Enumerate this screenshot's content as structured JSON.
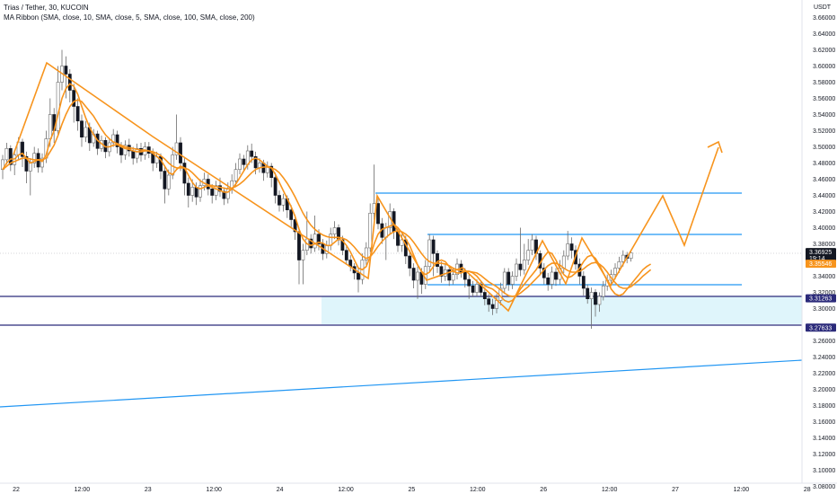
{
  "header": {
    "title": "Trias / Tether, 30, KUCOIN",
    "indicator": "MA Ribbon (SMA, close, 10, SMA, close, 5, SMA, close, 100, SMA, close, 200)"
  },
  "chart_data": {
    "type": "candlestick",
    "currency": "USDT",
    "y_ticks": [
      "3.66000",
      "3.64000",
      "3.62000",
      "3.60000",
      "3.58000",
      "3.56000",
      "3.54000",
      "3.52000",
      "3.50000",
      "3.48000",
      "3.46000",
      "3.44000",
      "3.42000",
      "3.40000",
      "3.38000",
      "3.34000",
      "3.32000",
      "3.30000",
      "3.26000",
      "3.24000",
      "3.22000",
      "3.20000",
      "3.18000",
      "3.16000",
      "3.14000",
      "3.12000",
      "3.10000",
      "3.08000"
    ],
    "x_ticks": [
      "22",
      "12:00",
      "23",
      "12:00",
      "24",
      "12:00",
      "25",
      "12:00",
      "26",
      "12:00",
      "27",
      "12:00",
      "28"
    ],
    "ylim": [
      3.075,
      3.675
    ],
    "price_tags": [
      {
        "value": 3.36925,
        "label": "3.36925",
        "sub": "19:14",
        "kind": "last",
        "color": "#131722"
      },
      {
        "value": 3.35546,
        "label": "3.35546",
        "kind": "ma",
        "color": "#f7941d"
      },
      {
        "value": 3.31263,
        "label": "3.31263",
        "kind": "level",
        "color": "#2b2a7a"
      },
      {
        "value": 3.27633,
        "label": "3.27633",
        "kind": "level",
        "color": "#2b2a7a"
      }
    ],
    "colors": {
      "up": "#ffffff",
      "down": "#131722",
      "wick": "#6b6b6b",
      "orange": "#f7941d",
      "blue": "#2196f3",
      "navy": "#2b2a7a",
      "zone": "#dff5fb"
    },
    "candles": [
      [
        3.472,
        3.484,
        3.49,
        3.46
      ],
      [
        3.484,
        3.498,
        3.505,
        3.478
      ],
      [
        3.498,
        3.478,
        3.502,
        3.47
      ],
      [
        3.478,
        3.49,
        3.496,
        3.465
      ],
      [
        3.49,
        3.506,
        3.512,
        3.484
      ],
      [
        3.506,
        3.488,
        3.51,
        3.475
      ],
      [
        3.488,
        3.47,
        3.494,
        3.455
      ],
      [
        3.47,
        3.48,
        3.486,
        3.44
      ],
      [
        3.48,
        3.492,
        3.5,
        3.474
      ],
      [
        3.492,
        3.475,
        3.498,
        3.468
      ],
      [
        3.475,
        3.486,
        3.492,
        3.468
      ],
      [
        3.486,
        3.51,
        3.52,
        3.48
      ],
      [
        3.51,
        3.54,
        3.56,
        3.5
      ],
      [
        3.54,
        3.52,
        3.548,
        3.505
      ],
      [
        3.52,
        3.58,
        3.6,
        3.515
      ],
      [
        3.58,
        3.6,
        3.62,
        3.57
      ],
      [
        3.6,
        3.59,
        3.612,
        3.56
      ],
      [
        3.59,
        3.57,
        3.596,
        3.555
      ],
      [
        3.57,
        3.55,
        3.578,
        3.53
      ],
      [
        3.55,
        3.532,
        3.56,
        3.52
      ],
      [
        3.532,
        3.512,
        3.54,
        3.5
      ],
      [
        3.512,
        3.524,
        3.532,
        3.506
      ],
      [
        3.524,
        3.505,
        3.53,
        3.495
      ],
      [
        3.505,
        3.516,
        3.522,
        3.5
      ],
      [
        3.516,
        3.498,
        3.52,
        3.49
      ],
      [
        3.498,
        3.508,
        3.514,
        3.494
      ],
      [
        3.508,
        3.494,
        3.512,
        3.486
      ],
      [
        3.494,
        3.505,
        3.51,
        3.488
      ],
      [
        3.505,
        3.515,
        3.522,
        3.5
      ],
      [
        3.515,
        3.5,
        3.52,
        3.492
      ],
      [
        3.5,
        3.49,
        3.506,
        3.48
      ],
      [
        3.49,
        3.502,
        3.508,
        3.484
      ],
      [
        3.502,
        3.495,
        3.51,
        3.488
      ],
      [
        3.495,
        3.486,
        3.5,
        3.478
      ],
      [
        3.486,
        3.498,
        3.504,
        3.48
      ],
      [
        3.498,
        3.49,
        3.505,
        3.482
      ],
      [
        3.49,
        3.5,
        3.506,
        3.484
      ],
      [
        3.5,
        3.492,
        3.506,
        3.486
      ],
      [
        3.492,
        3.48,
        3.498,
        3.47
      ],
      [
        3.48,
        3.488,
        3.494,
        3.474
      ],
      [
        3.488,
        3.47,
        3.492,
        3.46
      ],
      [
        3.47,
        3.448,
        3.476,
        3.43
      ],
      [
        3.448,
        3.465,
        3.472,
        3.44
      ],
      [
        3.465,
        3.49,
        3.5,
        3.46
      ],
      [
        3.49,
        3.505,
        3.54,
        3.484
      ],
      [
        3.505,
        3.48,
        3.512,
        3.47
      ],
      [
        3.48,
        3.455,
        3.486,
        3.44
      ],
      [
        3.455,
        3.44,
        3.462,
        3.425
      ],
      [
        3.44,
        3.45,
        3.46,
        3.432
      ],
      [
        3.45,
        3.438,
        3.456,
        3.428
      ],
      [
        3.438,
        3.452,
        3.46,
        3.432
      ],
      [
        3.452,
        3.46,
        3.468,
        3.446
      ],
      [
        3.46,
        3.448,
        3.466,
        3.44
      ],
      [
        3.448,
        3.44,
        3.454,
        3.43
      ],
      [
        3.44,
        3.452,
        3.458,
        3.434
      ],
      [
        3.452,
        3.445,
        3.462,
        3.438
      ],
      [
        3.445,
        3.436,
        3.45,
        3.428
      ],
      [
        3.436,
        3.448,
        3.456,
        3.43
      ],
      [
        3.448,
        3.458,
        3.466,
        3.442
      ],
      [
        3.458,
        3.472,
        3.48,
        3.452
      ],
      [
        3.472,
        3.485,
        3.492,
        3.466
      ],
      [
        3.485,
        3.478,
        3.49,
        3.47
      ],
      [
        3.478,
        3.495,
        3.502,
        3.472
      ],
      [
        3.495,
        3.488,
        3.504,
        3.48
      ],
      [
        3.488,
        3.474,
        3.494,
        3.466
      ],
      [
        3.474,
        3.48,
        3.486,
        3.468
      ],
      [
        3.48,
        3.468,
        3.484,
        3.458
      ],
      [
        3.468,
        3.476,
        3.482,
        3.462
      ],
      [
        3.476,
        3.462,
        3.48,
        3.45
      ],
      [
        3.462,
        3.44,
        3.468,
        3.43
      ],
      [
        3.44,
        3.428,
        3.446,
        3.42
      ],
      [
        3.428,
        3.436,
        3.442,
        3.42
      ],
      [
        3.436,
        3.422,
        3.44,
        3.412
      ],
      [
        3.422,
        3.41,
        3.428,
        3.4
      ],
      [
        3.41,
        3.395,
        3.416,
        3.385
      ],
      [
        3.395,
        3.36,
        3.4,
        3.33
      ],
      [
        3.36,
        3.372,
        3.38,
        3.33
      ],
      [
        3.372,
        3.386,
        3.42,
        3.366
      ],
      [
        3.386,
        3.375,
        3.392,
        3.368
      ],
      [
        3.375,
        3.392,
        3.415,
        3.37
      ],
      [
        3.392,
        3.38,
        3.398,
        3.372
      ],
      [
        3.38,
        3.368,
        3.386,
        3.36
      ],
      [
        3.368,
        3.378,
        3.384,
        3.362
      ],
      [
        3.378,
        3.392,
        3.4,
        3.372
      ],
      [
        3.392,
        3.4,
        3.408,
        3.386
      ],
      [
        3.4,
        3.385,
        3.404,
        3.378
      ],
      [
        3.385,
        3.372,
        3.39,
        3.366
      ],
      [
        3.372,
        3.36,
        3.378,
        3.354
      ],
      [
        3.36,
        3.352,
        3.366,
        3.346
      ],
      [
        3.352,
        3.344,
        3.356,
        3.336
      ],
      [
        3.344,
        3.336,
        3.35,
        3.32
      ],
      [
        3.336,
        3.36,
        3.368,
        3.33
      ],
      [
        3.36,
        3.375,
        3.382,
        3.354
      ],
      [
        3.375,
        3.418,
        3.43,
        3.37
      ],
      [
        3.418,
        3.43,
        3.478,
        3.41
      ],
      [
        3.43,
        3.405,
        3.436,
        3.398
      ],
      [
        3.405,
        3.388,
        3.412,
        3.38
      ],
      [
        3.388,
        3.4,
        3.406,
        3.36
      ],
      [
        3.4,
        3.42,
        3.43,
        3.392
      ],
      [
        3.42,
        3.395,
        3.424,
        3.386
      ],
      [
        3.395,
        3.378,
        3.4,
        3.37
      ],
      [
        3.378,
        3.385,
        3.392,
        3.37
      ],
      [
        3.385,
        3.365,
        3.39,
        3.355
      ],
      [
        3.365,
        3.35,
        3.372,
        3.34
      ],
      [
        3.35,
        3.335,
        3.356,
        3.325
      ],
      [
        3.335,
        3.345,
        3.352,
        3.312
      ],
      [
        3.345,
        3.33,
        3.35,
        3.318
      ],
      [
        3.33,
        3.352,
        3.36,
        3.324
      ],
      [
        3.352,
        3.385,
        3.392,
        3.346
      ],
      [
        3.385,
        3.368,
        3.39,
        3.34
      ],
      [
        3.368,
        3.352,
        3.372,
        3.344
      ],
      [
        3.352,
        3.34,
        3.358,
        3.332
      ],
      [
        3.34,
        3.348,
        3.356,
        3.334
      ],
      [
        3.348,
        3.335,
        3.352,
        3.328
      ],
      [
        3.335,
        3.342,
        3.35,
        3.33
      ],
      [
        3.342,
        3.355,
        3.362,
        3.336
      ],
      [
        3.355,
        3.345,
        3.36,
        3.338
      ],
      [
        3.345,
        3.336,
        3.35,
        3.326
      ],
      [
        3.336,
        3.328,
        3.342,
        3.312
      ],
      [
        3.328,
        3.32,
        3.334,
        3.314
      ],
      [
        3.32,
        3.33,
        3.336,
        3.315
      ],
      [
        3.33,
        3.32,
        3.335,
        3.314
      ],
      [
        3.32,
        3.312,
        3.326,
        3.304
      ],
      [
        3.312,
        3.305,
        3.318,
        3.296
      ],
      [
        3.305,
        3.3,
        3.312,
        3.292
      ],
      [
        3.3,
        3.31,
        3.318,
        3.294
      ],
      [
        3.31,
        3.325,
        3.332,
        3.304
      ],
      [
        3.325,
        3.345,
        3.35,
        3.318
      ],
      [
        3.345,
        3.33,
        3.35,
        3.322
      ],
      [
        3.33,
        3.34,
        3.346,
        3.324
      ],
      [
        3.34,
        3.355,
        3.362,
        3.334
      ],
      [
        3.355,
        3.348,
        3.4,
        3.34
      ],
      [
        3.348,
        3.36,
        3.38,
        3.342
      ],
      [
        3.36,
        3.372,
        3.386,
        3.354
      ],
      [
        3.372,
        3.385,
        3.392,
        3.366
      ],
      [
        3.385,
        3.368,
        3.39,
        3.36
      ],
      [
        3.368,
        3.35,
        3.372,
        3.342
      ],
      [
        3.35,
        3.338,
        3.356,
        3.33
      ],
      [
        3.338,
        3.33,
        3.344,
        3.322
      ],
      [
        3.33,
        3.345,
        3.352,
        3.324
      ],
      [
        3.345,
        3.336,
        3.35,
        3.328
      ],
      [
        3.336,
        3.35,
        3.36,
        3.33
      ],
      [
        3.35,
        3.365,
        3.372,
        3.344
      ],
      [
        3.365,
        3.38,
        3.396,
        3.36
      ],
      [
        3.38,
        3.372,
        3.388,
        3.362
      ],
      [
        3.372,
        3.355,
        3.378,
        3.348
      ],
      [
        3.355,
        3.34,
        3.362,
        3.33
      ],
      [
        3.34,
        3.325,
        3.346,
        3.316
      ],
      [
        3.325,
        3.312,
        3.33,
        3.306
      ],
      [
        3.312,
        3.32,
        3.326,
        3.275
      ],
      [
        3.32,
        3.305,
        3.324,
        3.29
      ],
      [
        3.305,
        3.315,
        3.32,
        3.296
      ],
      [
        3.315,
        3.328,
        3.334,
        3.31
      ],
      [
        3.328,
        3.335,
        3.342,
        3.322
      ],
      [
        3.335,
        3.342,
        3.348,
        3.33
      ],
      [
        3.342,
        3.35,
        3.356,
        3.336
      ],
      [
        3.35,
        3.358,
        3.364,
        3.344
      ],
      [
        3.358,
        3.366,
        3.372,
        3.352
      ],
      [
        3.366,
        3.362,
        3.37,
        3.356
      ],
      [
        3.362,
        3.369,
        3.372,
        3.358
      ]
    ],
    "ma_fast": [
      3.472,
      3.48,
      3.485,
      3.485,
      3.49,
      3.492,
      3.486,
      3.48,
      3.482,
      3.484,
      3.482,
      3.49,
      3.508,
      3.52,
      3.54,
      3.56,
      3.572,
      3.578,
      3.575,
      3.565,
      3.55,
      3.536,
      3.524,
      3.515,
      3.508,
      3.504,
      3.5,
      3.5,
      3.502,
      3.503,
      3.5,
      3.498,
      3.497,
      3.495,
      3.494,
      3.494,
      3.495,
      3.495,
      3.492,
      3.488,
      3.484,
      3.476,
      3.468,
      3.466,
      3.472,
      3.476,
      3.474,
      3.465,
      3.456,
      3.45,
      3.448,
      3.45,
      3.452,
      3.45,
      3.448,
      3.446,
      3.444,
      3.444,
      3.448,
      3.454,
      3.462,
      3.47,
      3.478,
      3.484,
      3.486,
      3.484,
      3.48,
      3.476,
      3.474,
      3.466,
      3.456,
      3.446,
      3.436,
      3.426,
      3.414,
      3.398,
      3.386,
      3.38,
      3.378,
      3.38,
      3.382,
      3.381,
      3.378,
      3.378,
      3.382,
      3.386,
      3.384,
      3.378,
      3.37,
      3.36,
      3.35,
      3.348,
      3.352,
      3.364,
      3.38,
      3.392,
      3.398,
      3.4,
      3.402,
      3.404,
      3.4,
      3.394,
      3.386,
      3.378,
      3.366,
      3.354,
      3.346,
      3.342,
      3.345,
      3.352,
      3.358,
      3.36,
      3.358,
      3.352,
      3.346,
      3.344,
      3.344,
      3.346,
      3.346,
      3.344,
      3.34,
      3.334,
      3.328,
      3.326,
      3.324,
      3.32,
      3.315,
      3.31,
      3.308,
      3.31,
      3.316,
      3.324,
      3.33,
      3.336,
      3.342,
      3.348,
      3.356,
      3.364,
      3.37,
      3.368,
      3.36,
      3.35,
      3.342,
      3.338,
      3.34,
      3.344,
      3.35,
      3.358,
      3.364,
      3.366,
      3.362,
      3.354,
      3.344,
      3.334,
      3.324,
      3.318,
      3.316,
      3.318,
      3.324,
      3.33,
      3.336,
      3.342,
      3.348,
      3.352,
      3.355
    ],
    "ma_slow": [
      3.472,
      3.476,
      3.48,
      3.482,
      3.484,
      3.486,
      3.486,
      3.485,
      3.484,
      3.484,
      3.484,
      3.486,
      3.494,
      3.502,
      3.514,
      3.528,
      3.54,
      3.55,
      3.556,
      3.558,
      3.556,
      3.55,
      3.544,
      3.538,
      3.53,
      3.522,
      3.515,
      3.51,
      3.506,
      3.504,
      3.502,
      3.5,
      3.499,
      3.498,
      3.497,
      3.496,
      3.496,
      3.495,
      3.494,
      3.492,
      3.489,
      3.485,
      3.48,
      3.476,
      3.474,
      3.474,
      3.474,
      3.472,
      3.468,
      3.463,
      3.458,
      3.455,
      3.453,
      3.452,
      3.451,
      3.45,
      3.449,
      3.448,
      3.449,
      3.451,
      3.454,
      3.458,
      3.463,
      3.468,
      3.472,
      3.474,
      3.475,
      3.475,
      3.474,
      3.472,
      3.468,
      3.462,
      3.455,
      3.447,
      3.438,
      3.428,
      3.418,
      3.41,
      3.403,
      3.398,
      3.394,
      3.391,
      3.389,
      3.388,
      3.388,
      3.388,
      3.387,
      3.385,
      3.381,
      3.376,
      3.37,
      3.365,
      3.362,
      3.364,
      3.37,
      3.377,
      3.383,
      3.388,
      3.392,
      3.395,
      3.396,
      3.395,
      3.392,
      3.388,
      3.382,
      3.375,
      3.368,
      3.362,
      3.358,
      3.356,
      3.356,
      3.356,
      3.355,
      3.353,
      3.35,
      3.348,
      3.347,
      3.346,
      3.346,
      3.345,
      3.344,
      3.341,
      3.337,
      3.333,
      3.33,
      3.327,
      3.323,
      3.319,
      3.316,
      3.315,
      3.316,
      3.319,
      3.323,
      3.327,
      3.332,
      3.337,
      3.342,
      3.348,
      3.353,
      3.356,
      3.356,
      3.354,
      3.35,
      3.347,
      3.345,
      3.345,
      3.346,
      3.349,
      3.353,
      3.356,
      3.357,
      3.355,
      3.351,
      3.345,
      3.338,
      3.332,
      3.327,
      3.325,
      3.325,
      3.327,
      3.331,
      3.335,
      3.34,
      3.344,
      3.348
    ]
  }
}
